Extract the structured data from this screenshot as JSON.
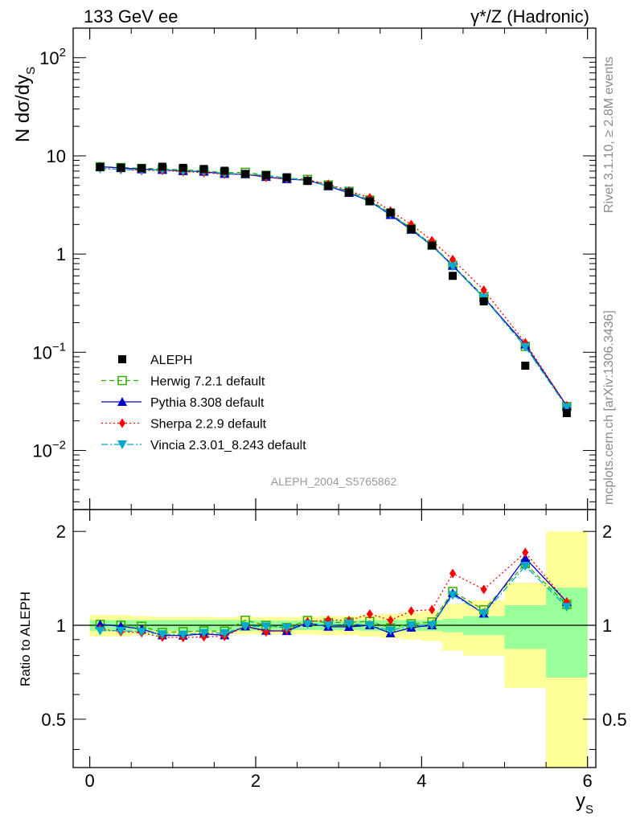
{
  "chart_data": {
    "type": "scatter",
    "title_left": "133 GeV ee",
    "title_right": "γ*/Z (Hadronic)",
    "ylabel_main": "N dσ/dy",
    "ylabel_main_sub": "S",
    "ylabel_ratio": "Ratio to ALEPH",
    "xlabel": "y",
    "xlabel_sub": "S",
    "side_note_top": "Rivet 3.1.10, ≥ 2.8M events",
    "side_note_bottom": "mcplots.cern.ch [arXiv:1306.3436]",
    "watermark": "ALEPH_2004_S5765862",
    "xlim": [
      -0.2,
      6.1
    ],
    "ylim_main": [
      0.0025,
      200
    ],
    "ylim_ratio": [
      0.35,
      2.35
    ],
    "yscale_main": "log",
    "legend_position": "bottom-left",
    "x_ticks": [
      "0",
      "2",
      "4",
      "6"
    ],
    "x_tick_values": [
      0,
      2,
      4,
      6
    ],
    "y_ticks_main": [
      {
        "value": 100,
        "base": "10",
        "exp": "2"
      },
      {
        "value": 10,
        "base": "10",
        "exp": ""
      },
      {
        "value": 1,
        "base": "1",
        "exp": ""
      },
      {
        "value": 0.1,
        "base": "10",
        "exp": "−1"
      },
      {
        "value": 0.01,
        "base": "10",
        "exp": "−2"
      }
    ],
    "y_ticks_ratio": [
      {
        "value": 0.5,
        "label": "0.5"
      },
      {
        "value": 1,
        "label": "1"
      },
      {
        "value": 2,
        "label": "2"
      }
    ],
    "bins": [
      {
        "x": 0.125,
        "lo": 0.0,
        "hi": 0.25
      },
      {
        "x": 0.375,
        "lo": 0.25,
        "hi": 0.5
      },
      {
        "x": 0.625,
        "lo": 0.5,
        "hi": 0.75
      },
      {
        "x": 0.875,
        "lo": 0.75,
        "hi": 1.0
      },
      {
        "x": 1.125,
        "lo": 1.0,
        "hi": 1.25
      },
      {
        "x": 1.375,
        "lo": 1.25,
        "hi": 1.5
      },
      {
        "x": 1.625,
        "lo": 1.5,
        "hi": 1.75
      },
      {
        "x": 1.875,
        "lo": 1.75,
        "hi": 2.0
      },
      {
        "x": 2.125,
        "lo": 2.0,
        "hi": 2.25
      },
      {
        "x": 2.375,
        "lo": 2.25,
        "hi": 2.5
      },
      {
        "x": 2.625,
        "lo": 2.5,
        "hi": 2.75
      },
      {
        "x": 2.875,
        "lo": 2.75,
        "hi": 3.0
      },
      {
        "x": 3.125,
        "lo": 3.0,
        "hi": 3.25
      },
      {
        "x": 3.375,
        "lo": 3.25,
        "hi": 3.5
      },
      {
        "x": 3.625,
        "lo": 3.5,
        "hi": 3.75
      },
      {
        "x": 3.875,
        "lo": 3.75,
        "hi": 4.0
      },
      {
        "x": 4.125,
        "lo": 4.0,
        "hi": 4.25
      },
      {
        "x": 4.375,
        "lo": 4.25,
        "hi": 4.5
      },
      {
        "x": 4.75,
        "lo": 4.5,
        "hi": 5.0
      },
      {
        "x": 5.25,
        "lo": 5.0,
        "hi": 5.5
      },
      {
        "x": 5.75,
        "lo": 5.5,
        "hi": 6.0
      }
    ],
    "data": {
      "name": "ALEPH",
      "values": [
        7.7,
        7.6,
        7.5,
        7.75,
        7.55,
        7.35,
        7.05,
        6.55,
        6.35,
        6.05,
        5.55,
        4.95,
        4.25,
        3.45,
        2.65,
        1.8,
        1.22,
        0.6,
        0.33,
        0.073,
        0.024
      ]
    },
    "band_inner": [
      0.04,
      0.04,
      0.04,
      0.04,
      0.04,
      0.04,
      0.04,
      0.04,
      0.035,
      0.035,
      0.035,
      0.035,
      0.035,
      0.04,
      0.04,
      0.04,
      0.04,
      0.05,
      0.07,
      0.16,
      0.32
    ],
    "band_outer": [
      0.08,
      0.08,
      0.07,
      0.065,
      0.065,
      0.065,
      0.06,
      0.065,
      0.065,
      0.065,
      0.065,
      0.07,
      0.07,
      0.08,
      0.09,
      0.1,
      0.11,
      0.17,
      0.2,
      0.37,
      1.0
    ],
    "series": [
      {
        "name": "Herwig 7.2.1 default",
        "color": "#33aa00",
        "marker": "open-square",
        "dash": "6,4",
        "values": [
          7.75,
          7.6,
          7.45,
          7.35,
          7.2,
          7.05,
          6.75,
          6.8,
          6.35,
          5.95,
          5.75,
          5.05,
          4.35,
          3.55,
          2.6,
          1.82,
          1.25,
          0.77,
          0.37,
          0.115,
          0.028
        ]
      },
      {
        "name": "Pythia 8.308 default",
        "color": "#0000cc",
        "marker": "triangle-up",
        "dash": "",
        "values": [
          7.75,
          7.55,
          7.3,
          7.2,
          7.0,
          6.9,
          6.55,
          6.5,
          6.1,
          5.8,
          5.65,
          4.9,
          4.2,
          3.45,
          2.5,
          1.77,
          1.22,
          0.76,
          0.36,
          0.12,
          0.0285
        ]
      },
      {
        "name": "Sherpa 2.2.9 default",
        "color": "#ff0000",
        "marker": "diamond",
        "dash": "2,3",
        "values": [
          7.5,
          7.25,
          7.1,
          7.1,
          6.9,
          6.75,
          6.5,
          6.5,
          6.05,
          5.85,
          5.7,
          5.15,
          4.4,
          3.75,
          2.75,
          2.0,
          1.37,
          0.88,
          0.43,
          0.125,
          0.0285
        ]
      },
      {
        "name": "Vincia 2.3.01_8.243 default",
        "color": "#00aacc",
        "marker": "triangle-down",
        "dash": "8,3,2,3",
        "values": [
          7.4,
          7.3,
          7.15,
          7.25,
          7.05,
          6.95,
          6.65,
          6.5,
          6.3,
          5.95,
          5.6,
          4.95,
          4.3,
          3.45,
          2.55,
          1.8,
          1.22,
          0.75,
          0.36,
          0.113,
          0.0275
        ]
      }
    ]
  }
}
